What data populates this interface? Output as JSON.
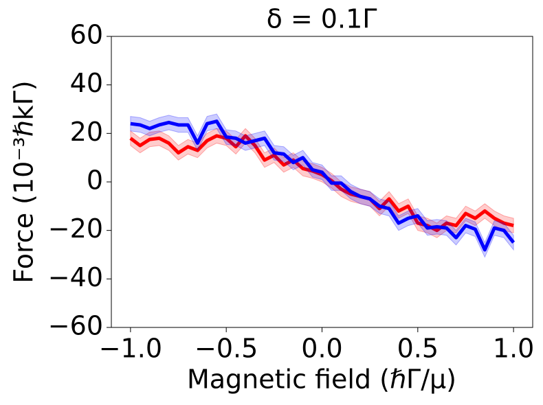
{
  "chart_data": {
    "type": "line",
    "title": "δ = 0.1Γ",
    "xlabel": "Magnetic field (ℏΓ/μ)",
    "ylabel": "Force (10⁻³ℏkΓ)",
    "x": [
      -1.0,
      -0.95,
      -0.9,
      -0.85,
      -0.8,
      -0.75,
      -0.7,
      -0.65,
      -0.6,
      -0.55,
      -0.5,
      -0.45,
      -0.4,
      -0.35,
      -0.3,
      -0.25,
      -0.2,
      -0.15,
      -0.1,
      -0.05,
      0.0,
      0.05,
      0.1,
      0.15,
      0.2,
      0.25,
      0.3,
      0.35,
      0.4,
      0.45,
      0.5,
      0.55,
      0.6,
      0.65,
      0.7,
      0.75,
      0.8,
      0.85,
      0.9,
      0.95,
      1.0
    ],
    "series": [
      {
        "color": "#ff0000",
        "error": 3,
        "values": [
          18,
          15,
          17.5,
          18,
          16,
          12,
          14.5,
          13,
          17,
          19,
          18,
          14.5,
          19,
          15,
          9,
          11,
          7,
          9,
          5.5,
          4.5,
          3,
          0.5,
          -3,
          -5,
          -6,
          -7,
          -11,
          -7,
          -12,
          -10,
          -17,
          -18,
          -20,
          -17,
          -18,
          -13,
          -15,
          -12,
          -15,
          -17,
          -18
        ]
      },
      {
        "color": "#0000ff",
        "error": 3,
        "values": [
          24,
          23.5,
          22,
          23.5,
          24.5,
          23.5,
          23.5,
          16,
          24,
          25,
          18.5,
          18,
          16,
          17,
          18,
          12,
          11.5,
          8,
          10,
          5,
          4,
          -0.5,
          -0.5,
          -4,
          -6,
          -7,
          -10,
          -11,
          -17,
          -15,
          -14,
          -19,
          -18.5,
          -19,
          -23,
          -18,
          -19.5,
          -28,
          -19,
          -20,
          -25
        ]
      }
    ],
    "xlim": [
      -1.1,
      1.1
    ],
    "ylim": [
      -60,
      60
    ],
    "xticks": [
      {
        "value": -1.0,
        "label": "−1.0"
      },
      {
        "value": -0.5,
        "label": "−0.5"
      },
      {
        "value": 0.0,
        "label": "0.0"
      },
      0.5,
      {
        "value": 1.0,
        "label": "1.0"
      }
    ],
    "yticks": [
      {
        "value": -60,
        "label": "−60"
      },
      {
        "value": -40,
        "label": "−40"
      },
      {
        "value": -20,
        "label": "−20"
      },
      0,
      20,
      40,
      60
    ]
  }
}
